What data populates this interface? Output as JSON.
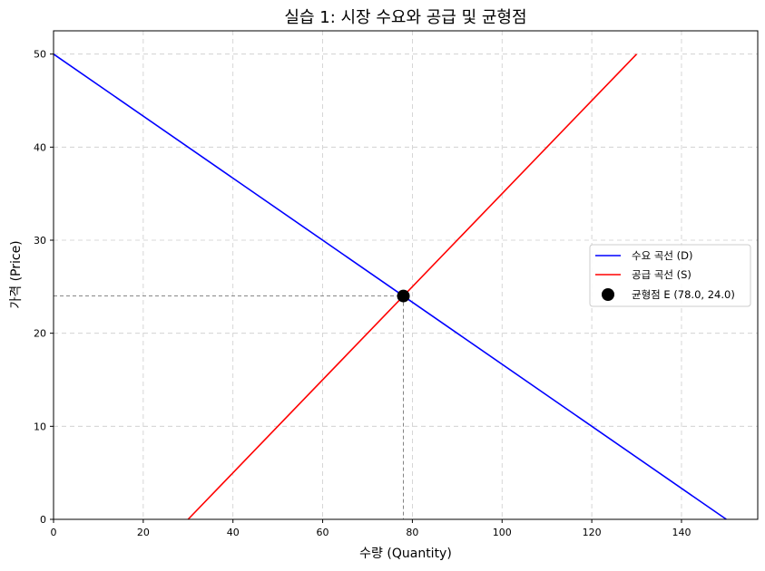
{
  "chart_data": {
    "type": "line",
    "title": "실습 1: 시장 수요와 공급 및 균형점",
    "xlabel": "수량 (Quantity)",
    "ylabel": "가격 (Price)",
    "xlim": [
      0,
      157
    ],
    "ylim": [
      0,
      52.5
    ],
    "xticks": [
      0,
      20,
      40,
      60,
      80,
      100,
      120,
      140
    ],
    "yticks": [
      0,
      10,
      20,
      30,
      40,
      50
    ],
    "grid": true,
    "legend_position": "right",
    "series": [
      {
        "name": "수요 곡선 (D)",
        "color": "#0000ff",
        "x": [
          0,
          150
        ],
        "y": [
          50,
          0
        ]
      },
      {
        "name": "공급 곡선 (S)",
        "color": "#ff0000",
        "x": [
          30,
          130
        ],
        "y": [
          0,
          50
        ]
      }
    ],
    "equilibrium": {
      "name": "균형점 E (78.0, 24.0)",
      "x": 78.0,
      "y": 24.0,
      "color": "#000000"
    }
  }
}
